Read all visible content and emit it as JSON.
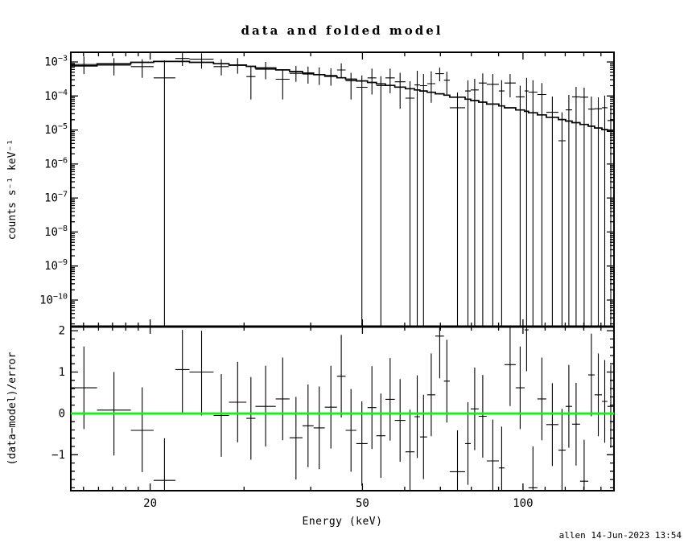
{
  "title": "data and folded model",
  "footer": "allen 14-Jun-2023 13:54",
  "colors": {
    "foreground": "#000000",
    "background": "#ffffff",
    "model_line": "#000000",
    "zero_line": "#00ff00"
  },
  "chart_data": [
    {
      "type": "scatter",
      "name": "spectrum",
      "ylabel": "counts s⁻¹ keV⁻¹",
      "xscale": "log",
      "yscale": "log",
      "xlim": [
        14.2,
        148.1
      ],
      "ylim": [
        1.66e-11,
        0.00192
      ],
      "ytick_exponents": [
        -3,
        -4,
        -5,
        -6,
        -7,
        -8,
        -9,
        -10
      ],
      "legend": "none",
      "grid": false,
      "model": {
        "x": [
          14.2,
          17.5,
          20.9,
          23.2,
          25.7,
          29.5,
          34.0,
          39.2,
          44.9,
          51.5,
          59.1,
          68.3,
          78.3,
          90.1,
          103.5,
          118.8,
          131.9,
          148.1
        ],
        "y": [
          0.00072,
          0.0009,
          0.00103,
          0.00103,
          0.00095,
          0.0008,
          0.00063,
          0.00048,
          0.000355,
          0.000256,
          0.00018,
          0.000123,
          8.2e-05,
          5.3e-05,
          3.3e-05,
          2e-05,
          1.39e-05,
          8.7e-06
        ]
      },
      "columns": [
        "e_lo_keV",
        "e_hi_keV",
        "flux",
        "flux_lo",
        "flux_hi"
      ],
      "points": [
        [
          14.2,
          15.9,
          0.00084,
          0.00044,
          0.00145
        ],
        [
          15.9,
          18.4,
          0.00081,
          0.0004,
          0.0013
        ],
        [
          18.4,
          20.3,
          0.00073,
          0.00034,
          0.0012
        ],
        [
          20.3,
          22.3,
          0.00034,
          0,
          0.00112
        ],
        [
          22.3,
          23.7,
          0.00126,
          0.00076,
          0.0019
        ],
        [
          23.7,
          26.3,
          0.0012,
          0.00064,
          0.0018
        ],
        [
          26.3,
          28.1,
          0.00073,
          0.0004,
          0.0012
        ],
        [
          28.1,
          30.3,
          0.00079,
          0.00045,
          0.0013
        ],
        [
          30.3,
          31.5,
          0.00037,
          7.9e-05,
          0.00076
        ],
        [
          31.5,
          34.4,
          0.00061,
          0.00031,
          0.001
        ],
        [
          34.4,
          36.5,
          0.00031,
          7.9e-05,
          0.00058
        ],
        [
          36.5,
          38.6,
          0.00046,
          0.00026,
          0.00076
        ],
        [
          38.6,
          40.5,
          0.00044,
          0.00023,
          0.00073
        ],
        [
          40.5,
          42.5,
          0.00042,
          0.00021,
          0.00069
        ],
        [
          42.5,
          44.8,
          0.0004,
          0.0002,
          0.00065
        ],
        [
          44.8,
          46.5,
          0.00058,
          0.00034,
          0.00091
        ],
        [
          46.5,
          48.7,
          0.00028,
          7.9e-05,
          0.00048
        ],
        [
          48.7,
          51.1,
          0.00018,
          0,
          0.0004
        ],
        [
          51.1,
          53.1,
          0.00034,
          0.00011,
          0.00064
        ],
        [
          53.1,
          55.2,
          0.0002,
          0,
          0.00038
        ],
        [
          55.2,
          57.5,
          0.00034,
          0.00012,
          0.00064
        ],
        [
          57.5,
          60.2,
          0.00026,
          4.2e-05,
          0.00048
        ],
        [
          60.2,
          62.6,
          8.6e-05,
          0,
          0.00027
        ],
        [
          62.6,
          64.1,
          0.00021,
          0,
          0.00055
        ],
        [
          64.1,
          66.1,
          0.0002,
          0,
          0.00044
        ],
        [
          66.1,
          68.5,
          0.00023,
          6.3e-05,
          0.00053
        ],
        [
          68.5,
          71.1,
          0.00045,
          0.00027,
          0.00068
        ],
        [
          71.1,
          72.9,
          0.00029,
          0.00011,
          0.00051
        ],
        [
          72.9,
          77.9,
          4.5e-05,
          0,
          0.000126
        ],
        [
          77.9,
          79.8,
          0.00014,
          0,
          0.00029
        ],
        [
          79.8,
          82.6,
          0.00015,
          0,
          0.00032
        ],
        [
          82.6,
          85.5,
          0.00024,
          0,
          0.00046
        ],
        [
          85.5,
          90.1,
          0.00022,
          0,
          0.00044
        ],
        [
          90.1,
          92.3,
          0.00014,
          0,
          0.00029
        ],
        [
          92.3,
          96.9,
          0.00024,
          9.1e-05,
          0.00044
        ],
        [
          96.9,
          100.7,
          9.4e-05,
          0,
          0.0002
        ],
        [
          100.7,
          102.4,
          0.00014,
          0,
          0.00034
        ],
        [
          102.4,
          106.4,
          0.00013,
          0,
          0.00029
        ],
        [
          106.4,
          110.6,
          0.00011,
          0,
          0.00024
        ],
        [
          110.6,
          116.5,
          3.3e-05,
          0,
          9.6e-05
        ],
        [
          116.5,
          120.2,
          4.8e-06,
          0,
          3.3e-05
        ],
        [
          120.2,
          123.6,
          3.9e-05,
          0,
          0.000107
        ],
        [
          123.6,
          127.9,
          9.4e-05,
          0,
          0.000185
        ],
        [
          127.9,
          132.5,
          9.2e-05,
          0,
          0.000176
        ],
        [
          132.5,
          136.2,
          4.1e-05,
          0,
          9.6e-05
        ],
        [
          136.2,
          140.6,
          4.2e-05,
          0,
          9.1e-05
        ],
        [
          140.6,
          144.0,
          4.5e-05,
          0,
          0.000102
        ],
        [
          144.0,
          148.1,
          1.9e-05,
          0,
          5.4e-05
        ]
      ]
    },
    {
      "type": "scatter",
      "name": "residuals",
      "xlabel": "Energy (keV)",
      "ylabel": "(data−model)/error",
      "xscale": "log",
      "xlim": [
        14.2,
        148.1
      ],
      "ylim": [
        -1.87,
        2.1
      ],
      "xticks": {
        "major": [
          20,
          50,
          100
        ],
        "labels": [
          "20",
          "50",
          "100"
        ],
        "minor": [
          15,
          16,
          17,
          18,
          19,
          30,
          40,
          60,
          70,
          80,
          90,
          110,
          120,
          130,
          140
        ]
      },
      "yticks": {
        "major": [
          -1,
          0,
          1,
          2
        ],
        "minor_step": 0.2
      },
      "zero_line": 0,
      "columns": [
        "e_lo_keV",
        "e_hi_keV",
        "resid",
        "resid_lo",
        "resid_hi"
      ],
      "points": [
        [
          14.2,
          15.9,
          0.62,
          -0.38,
          1.62
        ],
        [
          15.9,
          18.4,
          0.08,
          -1.02,
          1.0
        ],
        [
          18.4,
          20.3,
          -0.41,
          -1.42,
          0.63
        ],
        [
          20.3,
          22.3,
          -1.62,
          -2.3,
          -0.6
        ],
        [
          22.3,
          23.7,
          1.06,
          0.02,
          2.02
        ],
        [
          23.7,
          26.3,
          1.0,
          -0.05,
          2.0
        ],
        [
          26.3,
          28.1,
          -0.05,
          -1.05,
          0.95
        ],
        [
          28.1,
          30.3,
          0.27,
          -0.7,
          1.25
        ],
        [
          30.3,
          31.5,
          -0.12,
          -1.12,
          0.88
        ],
        [
          31.5,
          34.4,
          0.17,
          -0.8,
          1.15
        ],
        [
          34.4,
          36.5,
          0.35,
          -0.65,
          1.35
        ],
        [
          36.5,
          38.6,
          -0.59,
          -1.6,
          0.4
        ],
        [
          38.6,
          40.5,
          -0.3,
          -1.3,
          0.7
        ],
        [
          40.5,
          42.5,
          -0.35,
          -1.35,
          0.65
        ],
        [
          42.5,
          44.8,
          0.15,
          -0.85,
          1.15
        ],
        [
          44.8,
          46.5,
          0.9,
          -0.1,
          1.9
        ],
        [
          46.5,
          48.7,
          -0.41,
          -1.41,
          0.59
        ],
        [
          48.7,
          51.1,
          -0.73,
          -1.75,
          0.29
        ],
        [
          51.1,
          53.1,
          0.14,
          -0.86,
          1.14
        ],
        [
          53.1,
          55.2,
          -0.54,
          -1.56,
          0.48
        ],
        [
          55.2,
          57.5,
          0.34,
          -0.66,
          1.34
        ],
        [
          57.5,
          60.2,
          -0.17,
          -1.17,
          0.83
        ],
        [
          60.2,
          62.6,
          -0.93,
          -1.95,
          0.09
        ],
        [
          62.6,
          64.1,
          -0.08,
          -1.08,
          0.92
        ],
        [
          64.1,
          66.1,
          -0.57,
          -1.59,
          0.45
        ],
        [
          66.1,
          68.5,
          0.45,
          -0.55,
          1.45
        ],
        [
          68.5,
          71.1,
          1.87,
          0.85,
          2.6
        ],
        [
          71.1,
          72.9,
          0.78,
          -0.22,
          1.78
        ],
        [
          72.9,
          77.9,
          -1.41,
          -2.41,
          -0.41
        ],
        [
          77.9,
          79.8,
          -0.73,
          -1.73,
          0.27
        ],
        [
          79.8,
          82.6,
          0.11,
          -0.89,
          1.11
        ],
        [
          82.6,
          85.5,
          -0.07,
          -1.07,
          0.93
        ],
        [
          85.5,
          90.1,
          -1.15,
          -2.15,
          -0.15
        ],
        [
          90.1,
          92.3,
          -1.32,
          -2.32,
          -0.32
        ],
        [
          92.3,
          96.9,
          1.18,
          0.18,
          2.18
        ],
        [
          96.9,
          100.7,
          0.62,
          -0.38,
          1.62
        ],
        [
          100.7,
          102.4,
          2.02,
          1.02,
          3.02
        ],
        [
          102.4,
          106.4,
          -1.8,
          -2.8,
          -0.8
        ],
        [
          106.4,
          110.6,
          0.35,
          -0.65,
          1.35
        ],
        [
          110.6,
          116.5,
          -0.27,
          -1.27,
          0.73
        ],
        [
          116.5,
          120.2,
          -0.89,
          -1.89,
          0.11
        ],
        [
          120.2,
          123.6,
          0.17,
          -0.83,
          1.17
        ],
        [
          123.6,
          127.9,
          -0.26,
          -1.26,
          0.74
        ],
        [
          127.9,
          132.5,
          -1.64,
          -2.64,
          -0.64
        ],
        [
          132.5,
          136.2,
          0.93,
          -0.07,
          1.93
        ],
        [
          136.2,
          140.6,
          0.45,
          -0.55,
          1.45
        ],
        [
          140.6,
          144.0,
          0.29,
          -0.71,
          1.29
        ],
        [
          144.0,
          148.1,
          0.17,
          -0.83,
          1.17
        ]
      ]
    }
  ]
}
